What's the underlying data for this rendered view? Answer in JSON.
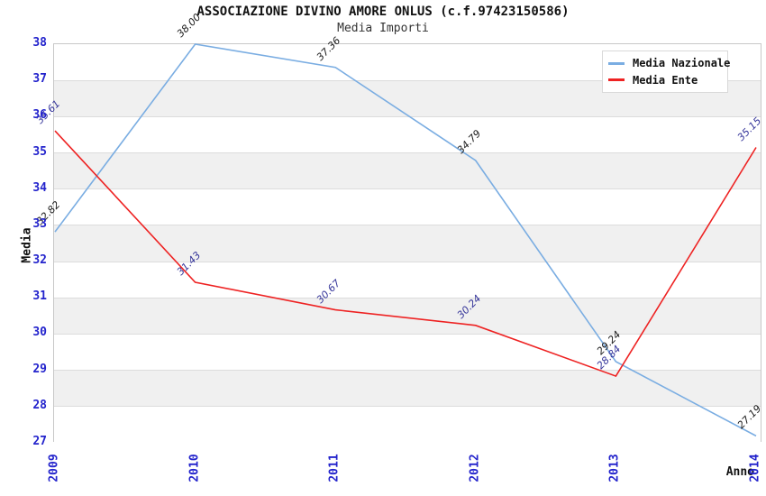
{
  "title": "ASSOCIAZIONE DIVINO AMORE ONLUS (c.f.97423150586)",
  "subtitle": "Media Importi",
  "chart_data": {
    "type": "line",
    "title": "ASSOCIAZIONE DIVINO AMORE ONLUS (c.f.97423150586)",
    "subtitle": "Media Importi",
    "xlabel": "Anno",
    "ylabel": "Media",
    "x": [
      "2009",
      "2010",
      "2011",
      "2012",
      "2013",
      "2014"
    ],
    "series": [
      {
        "name": "Media Nazionale",
        "color": "#7aade2",
        "label_color": "#1a1a1a",
        "values": [
          32.82,
          38.0,
          37.36,
          34.79,
          29.24,
          27.19
        ]
      },
      {
        "name": "Media Ente",
        "color": "#ee2222",
        "label_color": "#333399",
        "values": [
          35.61,
          31.43,
          30.67,
          30.24,
          28.84,
          35.15
        ]
      }
    ],
    "ylim": [
      27,
      38
    ],
    "ytick_step": 1,
    "grid": true,
    "legend_position": "top-right",
    "band_colors": [
      "#ffffff",
      "#f0f0f0"
    ],
    "tick_color": "#2323cc"
  }
}
